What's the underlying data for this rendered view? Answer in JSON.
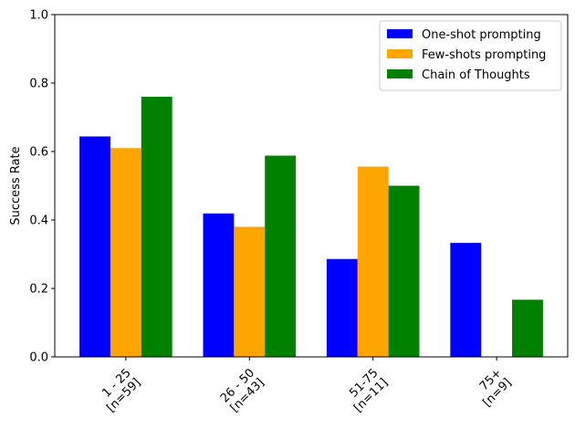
{
  "chart_data": {
    "type": "bar",
    "ylabel": "Success Rate",
    "ylim": [
      0,
      1
    ],
    "yticks": [
      0.0,
      0.2,
      0.4,
      0.6,
      0.8,
      1.0
    ],
    "ytick_labels": [
      "0.0",
      "0.2",
      "0.4",
      "0.6",
      "0.8",
      "1.0"
    ],
    "categories": [
      {
        "line1": "1 - 25",
        "line2": "[n=59]"
      },
      {
        "line1": "26 - 50",
        "line2": "[n=43]"
      },
      {
        "line1": "51-75",
        "line2": "[n=11]"
      },
      {
        "line1": "75+",
        "line2": "[n=9]"
      }
    ],
    "series": [
      {
        "name": "One-shot prompting",
        "color": "#0000ff",
        "values": [
          0.644,
          0.419,
          0.286,
          0.333
        ]
      },
      {
        "name": "Few-shots prompting",
        "color": "#ffa500",
        "values": [
          0.61,
          0.38,
          0.556,
          0.0
        ]
      },
      {
        "name": "Chain of Thoughts",
        "color": "#008000",
        "values": [
          0.76,
          0.588,
          0.5,
          0.167
        ]
      }
    ],
    "legend_position": "top-right",
    "grid": false
  }
}
